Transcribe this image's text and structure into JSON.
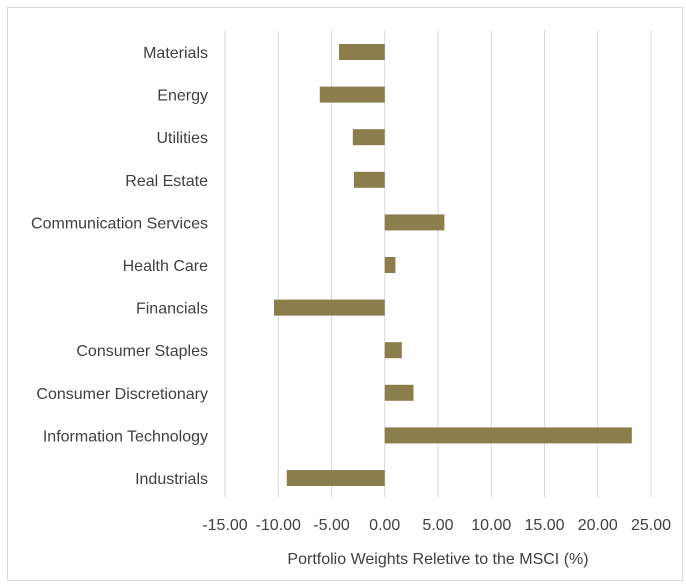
{
  "chart_data": {
    "type": "bar",
    "orientation": "horizontal",
    "title": "",
    "xlabel": "Portfolio Weights Reletive to the MSCI (%)",
    "ylabel": "",
    "categories": [
      "Materials",
      "Energy",
      "Utilities",
      "Real Estate",
      "Communication Services",
      "Health Care",
      "Financials",
      "Consumer Staples",
      "Consumer Discretionary",
      "Information Technology",
      "Industrials"
    ],
    "values": [
      -4.3,
      -6.1,
      -3.0,
      -2.9,
      5.6,
      1.0,
      -10.4,
      1.6,
      2.7,
      23.2,
      -9.2
    ],
    "xlim": [
      -15,
      25
    ],
    "xticks": [
      "-15.00",
      "-10.00",
      "-5.00",
      "0.00",
      "5.00",
      "10.00",
      "15.00",
      "20.00",
      "25.00"
    ],
    "xtick_values": [
      -15,
      -10,
      -5,
      0,
      5,
      10,
      15,
      20,
      25
    ],
    "grid": "vertical",
    "legend": "none",
    "bar_color": "#8c7d4c"
  }
}
